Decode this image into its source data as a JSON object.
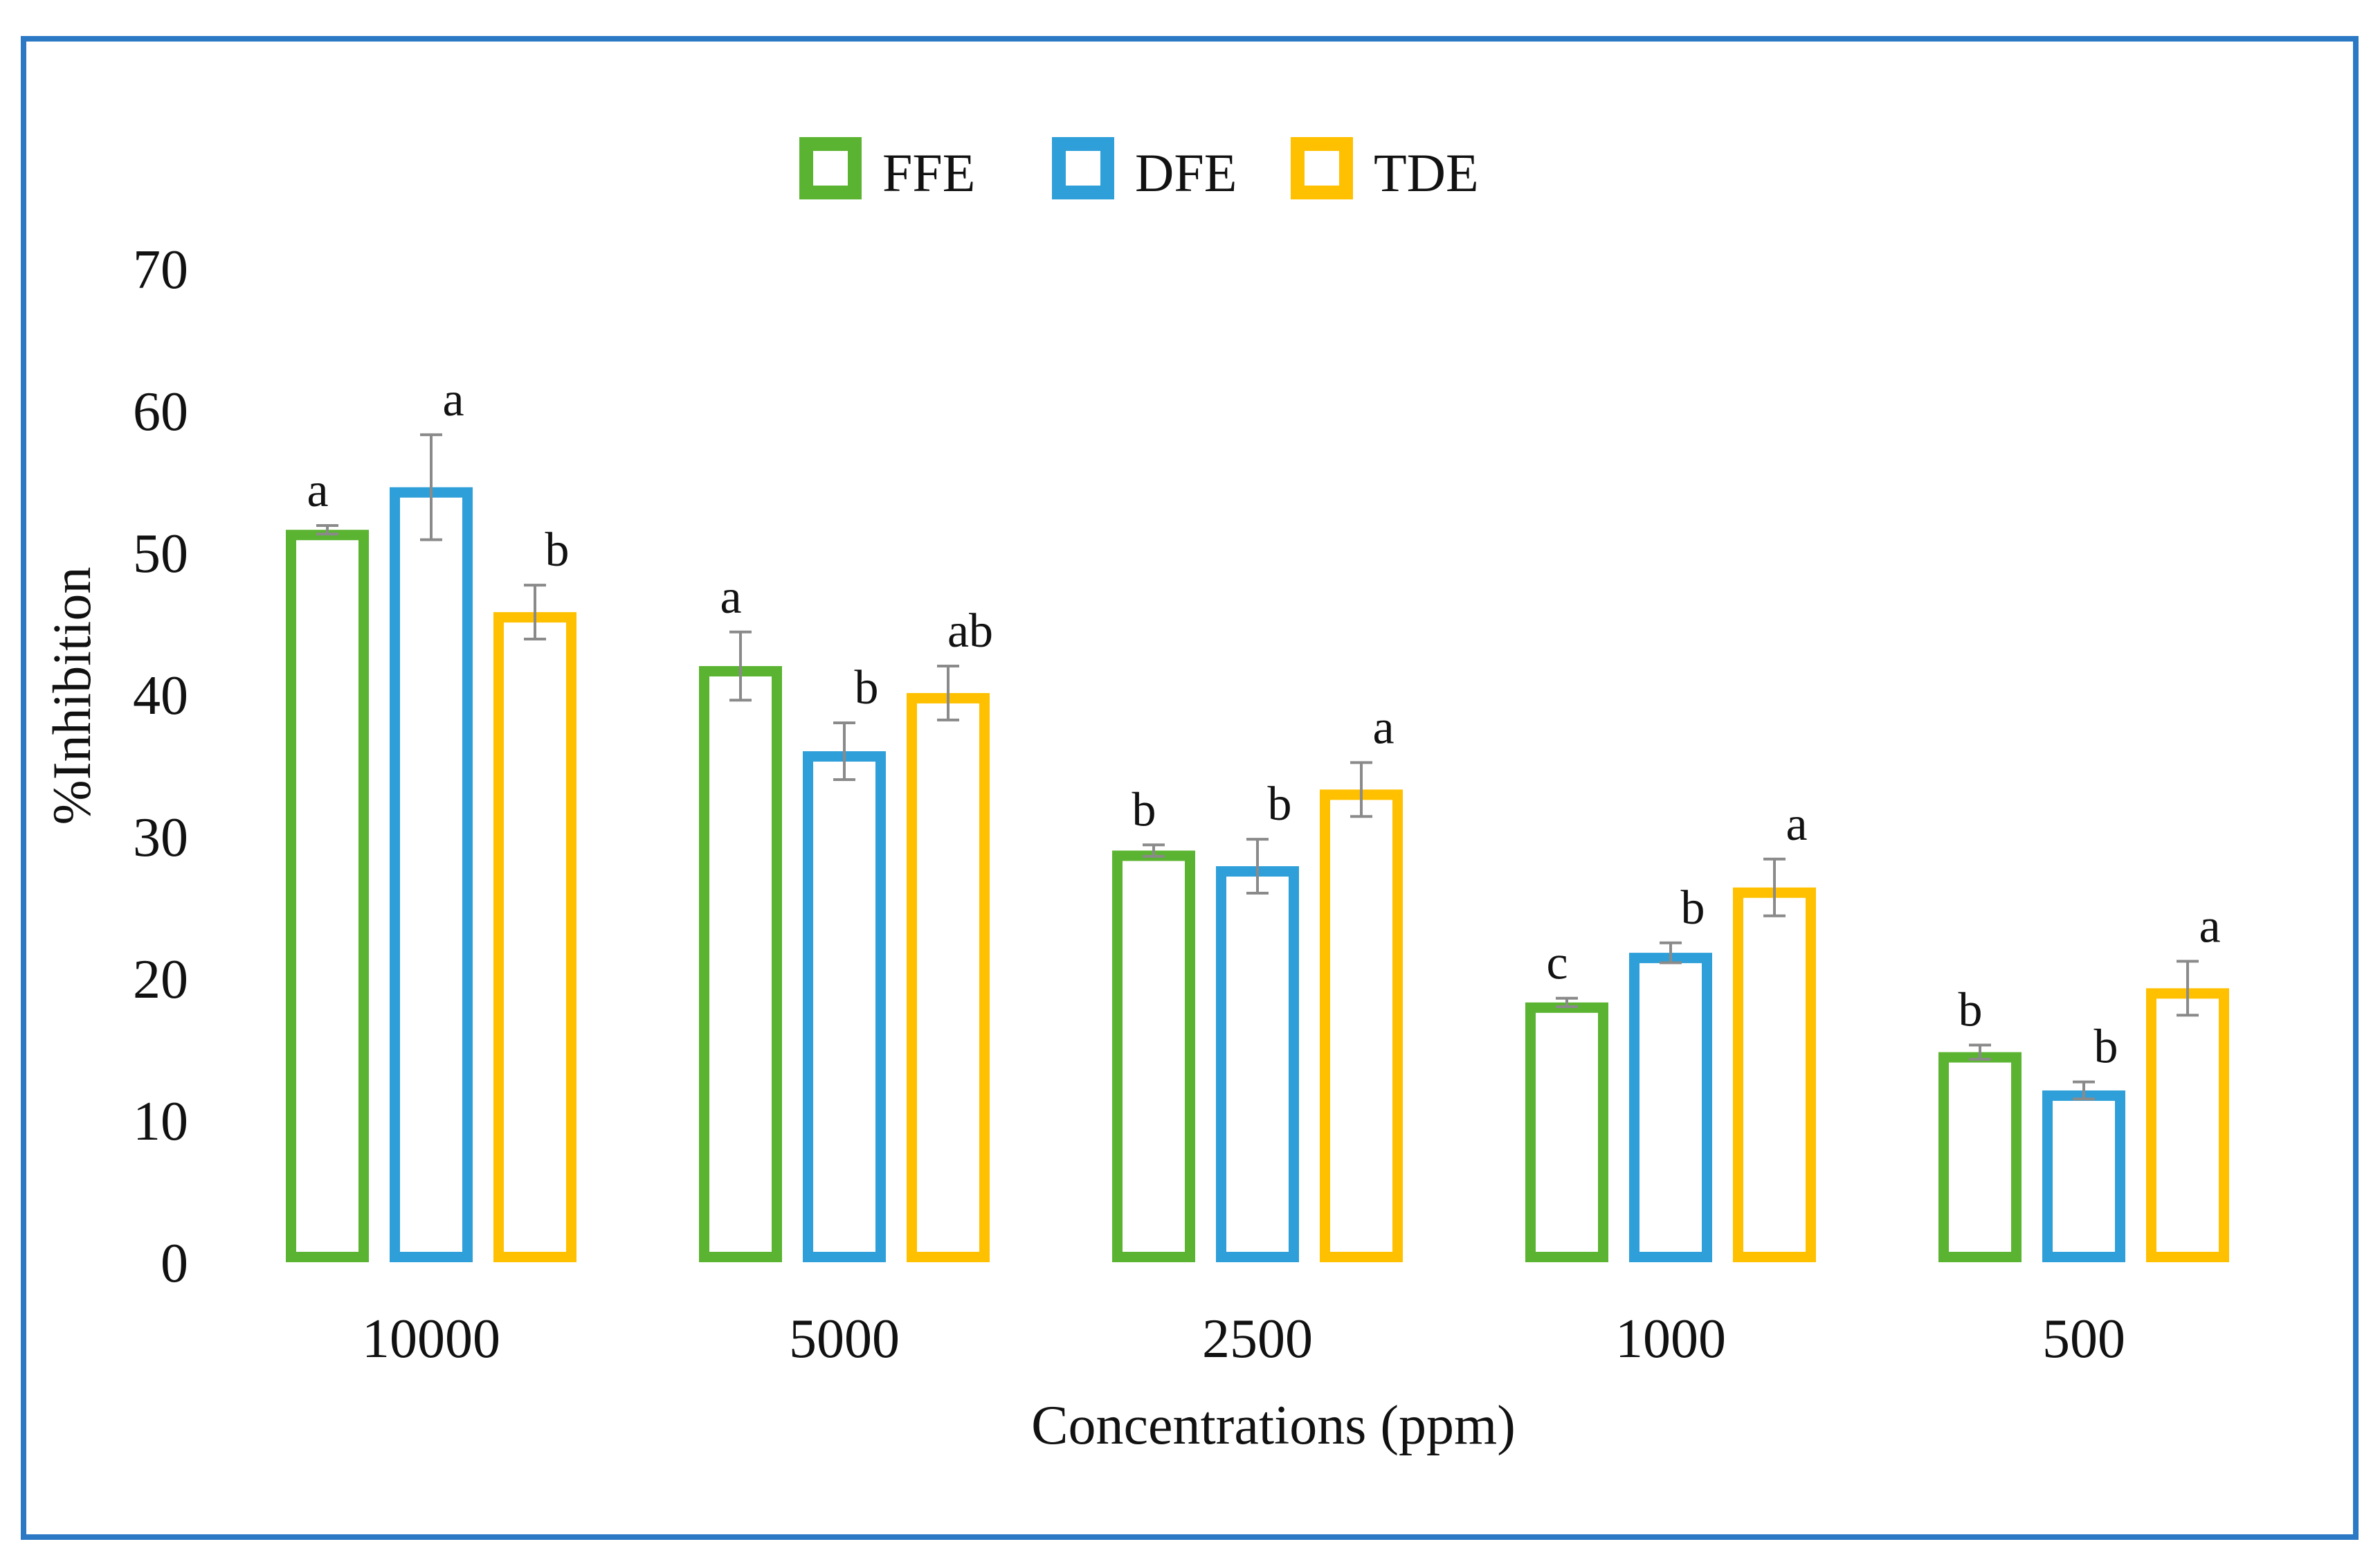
{
  "chart_data": {
    "type": "bar",
    "title": "",
    "xlabel": "Concentrations (ppm)",
    "ylabel": "%Inhibition",
    "ylim": [
      0,
      70
    ],
    "yticks": [
      "0",
      "10",
      "20",
      "30",
      "40",
      "50",
      "60",
      "70"
    ],
    "categories": [
      "10000",
      "5000",
      "2500",
      "1000",
      "500"
    ],
    "legend_position": "top-center",
    "grid": false,
    "series": [
      {
        "name": "FFE",
        "color": "#5bb431",
        "values": [
          51.6,
          42.0,
          29.0,
          18.3,
          14.8
        ],
        "errors": [
          0.3,
          2.4,
          0.4,
          0.3,
          0.5
        ],
        "letters": [
          "a",
          "a",
          "b",
          "c",
          "b"
        ]
      },
      {
        "name": "DFE",
        "color": "#2e9fd8",
        "values": [
          54.6,
          36.0,
          27.9,
          21.8,
          12.1
        ],
        "errors": [
          3.7,
          2.0,
          1.9,
          0.7,
          0.6
        ],
        "letters": [
          "a",
          "b",
          "b",
          "b",
          "b"
        ]
      },
      {
        "name": "TDE",
        "color": "#ffc000",
        "values": [
          45.8,
          40.1,
          33.3,
          26.4,
          19.3
        ],
        "errors": [
          1.9,
          1.9,
          1.9,
          2.0,
          1.9
        ],
        "letters": [
          "b",
          "ab",
          "a",
          "a",
          "a"
        ]
      }
    ]
  }
}
